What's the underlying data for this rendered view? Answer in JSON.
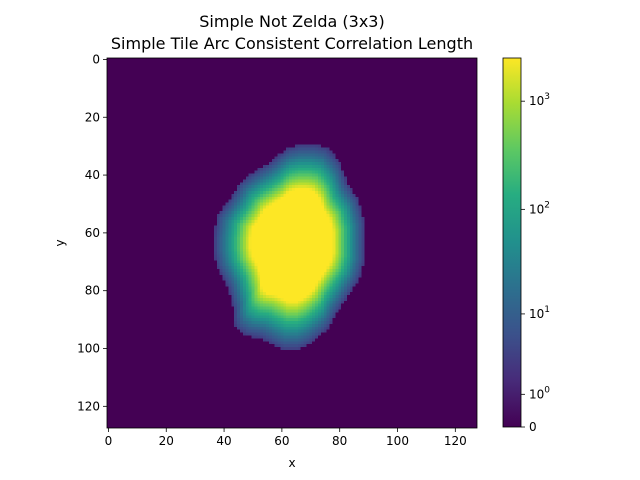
{
  "chart_data": {
    "type": "heatmap",
    "title": "Simple Not Zelda (3x3)",
    "subtitle": "Simple Tile Arc Consistent Correlation Length",
    "xlabel": "x",
    "ylabel": "y",
    "x_ticks": [
      0,
      20,
      40,
      60,
      80,
      100,
      120
    ],
    "y_ticks": [
      0,
      20,
      40,
      60,
      80,
      100,
      120
    ],
    "grid_size": [
      128,
      128
    ],
    "xlim": [
      0,
      128
    ],
    "ylim": [
      128,
      0
    ],
    "colormap": "viridis",
    "color_scale": "symlog",
    "color_range": [
      0,
      2500
    ],
    "colorbar_ticks": [
      {
        "value": 0,
        "label": "0"
      },
      {
        "value": 1,
        "base": "10",
        "exp": "0"
      },
      {
        "value": 10,
        "base": "10",
        "exp": "1"
      },
      {
        "value": 100,
        "base": "10",
        "exp": "2"
      },
      {
        "value": 1000,
        "base": "10",
        "exp": "3"
      }
    ],
    "region": {
      "background_value": 0,
      "outer_boundary": [
        [
          37,
          62
        ],
        [
          38,
          55
        ],
        [
          40,
          52
        ],
        [
          43,
          48
        ],
        [
          46,
          43
        ],
        [
          50,
          40
        ],
        [
          55,
          37
        ],
        [
          58,
          35
        ],
        [
          60,
          33
        ],
        [
          63,
          31
        ],
        [
          67,
          30
        ],
        [
          72,
          30
        ],
        [
          76,
          31
        ],
        [
          79,
          34
        ],
        [
          81,
          37
        ],
        [
          82,
          40
        ],
        [
          83,
          43
        ],
        [
          85,
          46
        ],
        [
          87,
          49
        ],
        [
          88,
          53
        ],
        [
          89,
          57
        ],
        [
          89,
          62
        ],
        [
          89,
          66
        ],
        [
          89,
          70
        ],
        [
          88,
          74
        ],
        [
          87,
          77
        ],
        [
          85,
          80
        ],
        [
          83,
          83
        ],
        [
          81,
          86
        ],
        [
          79,
          89
        ],
        [
          77,
          93
        ],
        [
          74,
          96
        ],
        [
          70,
          99
        ],
        [
          66,
          101
        ],
        [
          61,
          101
        ],
        [
          57,
          99
        ],
        [
          53,
          97
        ],
        [
          48,
          96
        ],
        [
          45,
          94
        ],
        [
          44,
          91
        ],
        [
          44,
          88
        ],
        [
          43,
          84
        ],
        [
          42,
          80
        ],
        [
          40,
          76
        ],
        [
          38,
          72
        ],
        [
          37,
          67
        ]
      ],
      "center": [
        65,
        64
      ],
      "edge_value": 3,
      "core_value": 2500,
      "core_fraction": 0.55
    }
  }
}
